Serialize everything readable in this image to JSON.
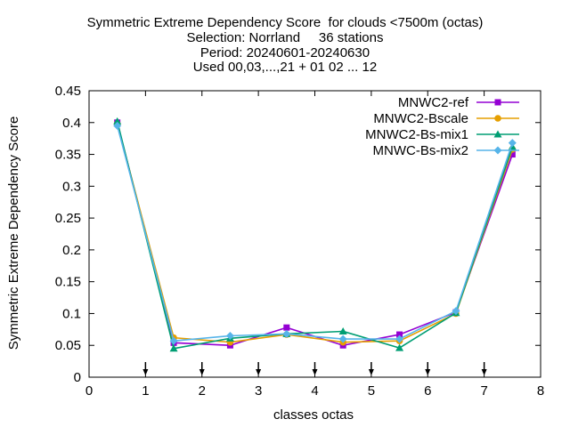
{
  "chart_data": {
    "type": "line",
    "title_lines": [
      "Symmetric Extreme Dependency Score  for clouds <7500m (octas)",
      "Selection: Norrland     36 stations",
      "Period: 20240601-20240630",
      "Used 00,03,...,21 + 01 02 ... 12"
    ],
    "xlabel": "classes octas",
    "ylabel": "Symmetric Extreme Dependency Score",
    "xlim": [
      0,
      8
    ],
    "ylim": [
      0,
      0.45
    ],
    "xticks": [
      0,
      1,
      2,
      3,
      4,
      5,
      6,
      7,
      8
    ],
    "xtick_labels": [
      "0",
      "1",
      "2",
      "3",
      "4",
      "5",
      "6",
      "7",
      "8"
    ],
    "yticks": [
      0,
      0.05,
      0.1,
      0.15,
      0.2,
      0.25,
      0.3,
      0.35,
      0.4,
      0.45
    ],
    "ytick_labels": [
      "0",
      "0.05",
      "0.1",
      "0.15",
      "0.2",
      "0.25",
      "0.3",
      "0.35",
      "0.4",
      "0.45"
    ],
    "class_markers_x": [
      1,
      2,
      3,
      4,
      5,
      6,
      7
    ],
    "grid": false,
    "legend_position": "top-right",
    "x": [
      0.5,
      1.5,
      2.5,
      3.5,
      4.5,
      5.5,
      6.5,
      7.5
    ],
    "series": [
      {
        "name": "MNWC2-ref",
        "color": "#9400d3",
        "marker": "square-filled",
        "values": [
          0.4,
          0.054,
          0.05,
          0.078,
          0.05,
          0.067,
          0.102,
          0.35
        ]
      },
      {
        "name": "MNWC2-Bscale",
        "color": "#e69f00",
        "marker": "circle-filled",
        "values": [
          0.398,
          0.062,
          0.055,
          0.067,
          0.055,
          0.057,
          0.1,
          0.358
        ]
      },
      {
        "name": "MNWC2-Bs-mix1",
        "color": "#009e73",
        "marker": "triangle-filled",
        "values": [
          0.402,
          0.045,
          0.061,
          0.068,
          0.072,
          0.046,
          0.101,
          0.362
        ]
      },
      {
        "name": "MNWC-Bs-mix2",
        "color": "#56b4e9",
        "marker": "diamond-filled",
        "values": [
          0.395,
          0.057,
          0.065,
          0.068,
          0.06,
          0.06,
          0.104,
          0.368
        ]
      }
    ]
  }
}
